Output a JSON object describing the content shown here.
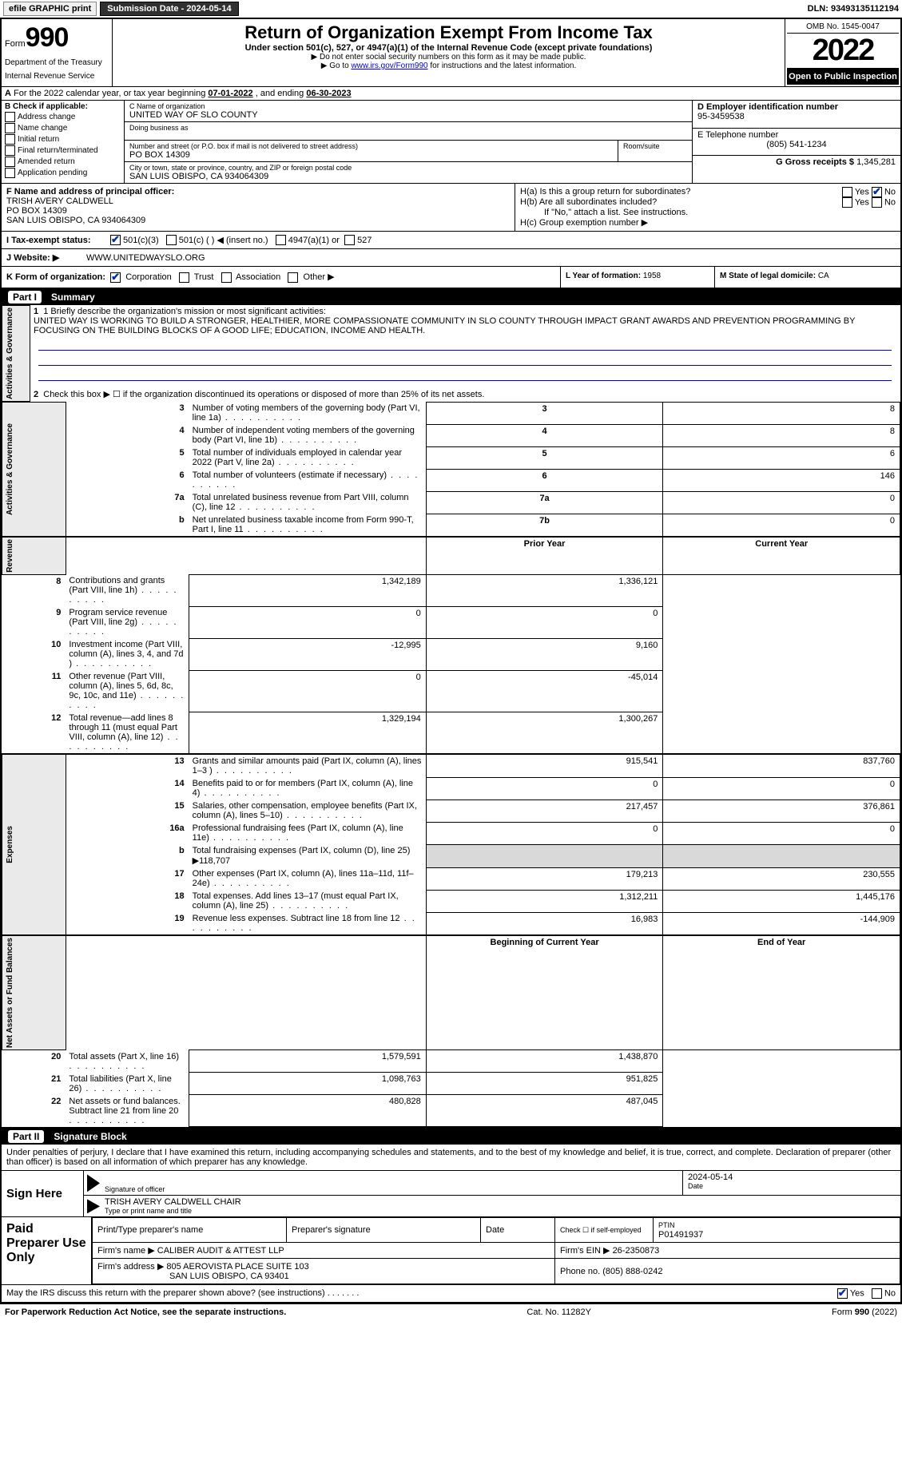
{
  "topbar": {
    "efile_label": "efile GRAPHIC print",
    "submission_label": "Submission Date - 2024-05-14",
    "dln_label": "DLN: 93493135112194"
  },
  "header": {
    "form_prefix": "Form",
    "form_number": "990",
    "dept": "Department of the Treasury",
    "irs": "Internal Revenue Service",
    "title": "Return of Organization Exempt From Income Tax",
    "subtitle": "Under section 501(c), 527, or 4947(a)(1) of the Internal Revenue Code (except private foundations)",
    "note1": "▶ Do not enter social security numbers on this form as it may be made public.",
    "note2_pre": "▶ Go to ",
    "note2_link": "www.irs.gov/Form990",
    "note2_post": " for instructions and the latest information.",
    "omb": "OMB No. 1545-0047",
    "year": "2022",
    "open_public": "Open to Public Inspection"
  },
  "row_a": {
    "label_a": "A",
    "text": " For the 2022 calendar year, or tax year beginning ",
    "begin": "07-01-2022",
    "mid": "    , and ending ",
    "end": "06-30-2023"
  },
  "col_b": {
    "header": "B Check if applicable:",
    "items": [
      "Address change",
      "Name change",
      "Initial return",
      "Final return/terminated",
      "Amended return",
      "Application pending"
    ]
  },
  "col_c": {
    "name_label": "C Name of organization",
    "name": "UNITED WAY OF SLO COUNTY",
    "dba_label": "Doing business as",
    "dba": "",
    "street_label": "Number and street (or P.O. box if mail is not delivered to street address)",
    "room_label": "Room/suite",
    "street": "PO BOX 14309",
    "city_label": "City or town, state or province, country, and ZIP or foreign postal code",
    "city": "SAN LUIS OBISPO, CA  934064309"
  },
  "col_d": {
    "ein_label": "D Employer identification number",
    "ein": "95-3459538",
    "phone_label": "E Telephone number",
    "phone": "(805) 541-1234",
    "gross_label": "G Gross receipts $",
    "gross": "1,345,281"
  },
  "row_f": {
    "label": "F Name and address of principal officer:",
    "name": "TRISH AVERY CALDWELL",
    "addr1": "PO BOX 14309",
    "addr2": "SAN LUIS OBISPO, CA  934064309"
  },
  "row_h": {
    "ha": "H(a)  Is this a group return for subordinates?",
    "hb": "H(b)  Are all subordinates included?",
    "hb_note": "If \"No,\" attach a list. See instructions.",
    "hc": "H(c)  Group exemption number ▶",
    "yes": "Yes",
    "no": "No"
  },
  "row_i": {
    "label": "I  Tax-exempt status:",
    "opt1": "501(c)(3)",
    "opt2": "501(c) (  ) ◀ (insert no.)",
    "opt3": "4947(a)(1) or",
    "opt4": "527"
  },
  "row_j": {
    "label": "J  Website: ▶",
    "value": "WWW.UNITEDWAYSLO.ORG"
  },
  "row_k": {
    "label": "K Form of organization:",
    "corp": "Corporation",
    "trust": "Trust",
    "assoc": "Association",
    "other": "Other ▶"
  },
  "row_lm": {
    "l_label": "L Year of formation:",
    "l_val": "1958",
    "m_label": "M State of legal domicile:",
    "m_val": "CA"
  },
  "parts": {
    "p1": "Part I",
    "p1_title": "Summary",
    "p2": "Part II",
    "p2_title": "Signature Block"
  },
  "summary": {
    "side_labels": [
      "Activities & Governance",
      "Revenue",
      "Expenses",
      "Net Assets or Fund Balances"
    ],
    "line1_label": "1  Briefly describe the organization's mission or most significant activities:",
    "mission": "UNITED WAY IS WORKING TO BUILD A STRONGER, HEALTHIER, MORE COMPASSIONATE COMMUNITY IN SLO COUNTY THROUGH IMPACT GRANT AWARDS AND PREVENTION PROGRAMMING BY FOCUSING ON THE BUILDING BLOCKS OF A GOOD LIFE; EDUCATION, INCOME AND HEALTH.",
    "line2": "Check this box ▶ ☐  if the organization discontinued its operations or disposed of more than 25% of its net assets.",
    "lines_top": [
      {
        "n": "3",
        "desc": "Number of voting members of the governing body (Part VI, line 1a)",
        "box": "3",
        "val": "8"
      },
      {
        "n": "4",
        "desc": "Number of independent voting members of the governing body (Part VI, line 1b)",
        "box": "4",
        "val": "8"
      },
      {
        "n": "5",
        "desc": "Total number of individuals employed in calendar year 2022 (Part V, line 2a)",
        "box": "5",
        "val": "6"
      },
      {
        "n": "6",
        "desc": "Total number of volunteers (estimate if necessary)",
        "box": "6",
        "val": "146"
      },
      {
        "n": "7a",
        "desc": "Total unrelated business revenue from Part VIII, column (C), line 12",
        "box": "7a",
        "val": "0"
      },
      {
        "n": "b",
        "desc": "Net unrelated business taxable income from Form 990-T, Part I, line 11",
        "box": "7b",
        "val": "0"
      }
    ],
    "col_headers": {
      "prior": "Prior Year",
      "current": "Current Year",
      "begin": "Beginning of Current Year",
      "end": "End of Year"
    },
    "revenue": [
      {
        "n": "8",
        "desc": "Contributions and grants (Part VIII, line 1h)",
        "prior": "1,342,189",
        "cur": "1,336,121"
      },
      {
        "n": "9",
        "desc": "Program service revenue (Part VIII, line 2g)",
        "prior": "0",
        "cur": "0"
      },
      {
        "n": "10",
        "desc": "Investment income (Part VIII, column (A), lines 3, 4, and 7d )",
        "prior": "-12,995",
        "cur": "9,160"
      },
      {
        "n": "11",
        "desc": "Other revenue (Part VIII, column (A), lines 5, 6d, 8c, 9c, 10c, and 11e)",
        "prior": "0",
        "cur": "-45,014"
      },
      {
        "n": "12",
        "desc": "Total revenue—add lines 8 through 11 (must equal Part VIII, column (A), line 12)",
        "prior": "1,329,194",
        "cur": "1,300,267"
      }
    ],
    "expenses": [
      {
        "n": "13",
        "desc": "Grants and similar amounts paid (Part IX, column (A), lines 1–3 )",
        "prior": "915,541",
        "cur": "837,760"
      },
      {
        "n": "14",
        "desc": "Benefits paid to or for members (Part IX, column (A), line 4)",
        "prior": "0",
        "cur": "0"
      },
      {
        "n": "15",
        "desc": "Salaries, other compensation, employee benefits (Part IX, column (A), lines 5–10)",
        "prior": "217,457",
        "cur": "376,861"
      },
      {
        "n": "16a",
        "desc": "Professional fundraising fees (Part IX, column (A), line 11e)",
        "prior": "0",
        "cur": "0"
      }
    ],
    "line_b": {
      "n": "b",
      "desc": "Total fundraising expenses (Part IX, column (D), line 25) ▶",
      "val": "118,707"
    },
    "expenses2": [
      {
        "n": "17",
        "desc": "Other expenses (Part IX, column (A), lines 11a–11d, 11f–24e)",
        "prior": "179,213",
        "cur": "230,555"
      },
      {
        "n": "18",
        "desc": "Total expenses. Add lines 13–17 (must equal Part IX, column (A), line 25)",
        "prior": "1,312,211",
        "cur": "1,445,176"
      },
      {
        "n": "19",
        "desc": "Revenue less expenses. Subtract line 18 from line 12",
        "prior": "16,983",
        "cur": "-144,909"
      }
    ],
    "netassets": [
      {
        "n": "20",
        "desc": "Total assets (Part X, line 16)",
        "prior": "1,579,591",
        "cur": "1,438,870"
      },
      {
        "n": "21",
        "desc": "Total liabilities (Part X, line 26)",
        "prior": "1,098,763",
        "cur": "951,825"
      },
      {
        "n": "22",
        "desc": "Net assets or fund balances. Subtract line 21 from line 20",
        "prior": "480,828",
        "cur": "487,045"
      }
    ]
  },
  "sig": {
    "penalties": "Under penalties of perjury, I declare that I have examined this return, including accompanying schedules and statements, and to the best of my knowledge and belief, it is true, correct, and complete. Declaration of preparer (other than officer) is based on all information of which preparer has any knowledge.",
    "sign_here": "Sign Here",
    "sig_officer_caption": "Signature of officer",
    "date_caption": "Date",
    "sig_date": "2024-05-14",
    "name_title": "TRISH AVERY CALDWELL  CHAIR",
    "name_title_caption": "Type or print name and title"
  },
  "prep": {
    "label": "Paid Preparer Use Only",
    "h1": "Print/Type preparer's name",
    "h2": "Preparer's signature",
    "h3": "Date",
    "h4": "Check ☐ if self-employed",
    "h5_label": "PTIN",
    "h5": "P01491937",
    "firm_name_label": "Firm's name     ▶",
    "firm_name": "CALIBER AUDIT & ATTEST LLP",
    "firm_ein_label": "Firm's EIN ▶",
    "firm_ein": "26-2350873",
    "firm_addr_label": "Firm's address ▶",
    "firm_addr1": "805 AEROVISTA PLACE SUITE 103",
    "firm_addr2": "SAN LUIS OBISPO, CA  93401",
    "phone_label": "Phone no.",
    "phone": "(805) 888-0242",
    "discuss": "May the IRS discuss this return with the preparer shown above? (see instructions)",
    "yes": "Yes",
    "no": "No"
  },
  "footer": {
    "left": "For Paperwork Reduction Act Notice, see the separate instructions.",
    "mid": "Cat. No. 11282Y",
    "right": "Form 990 (2022)"
  }
}
